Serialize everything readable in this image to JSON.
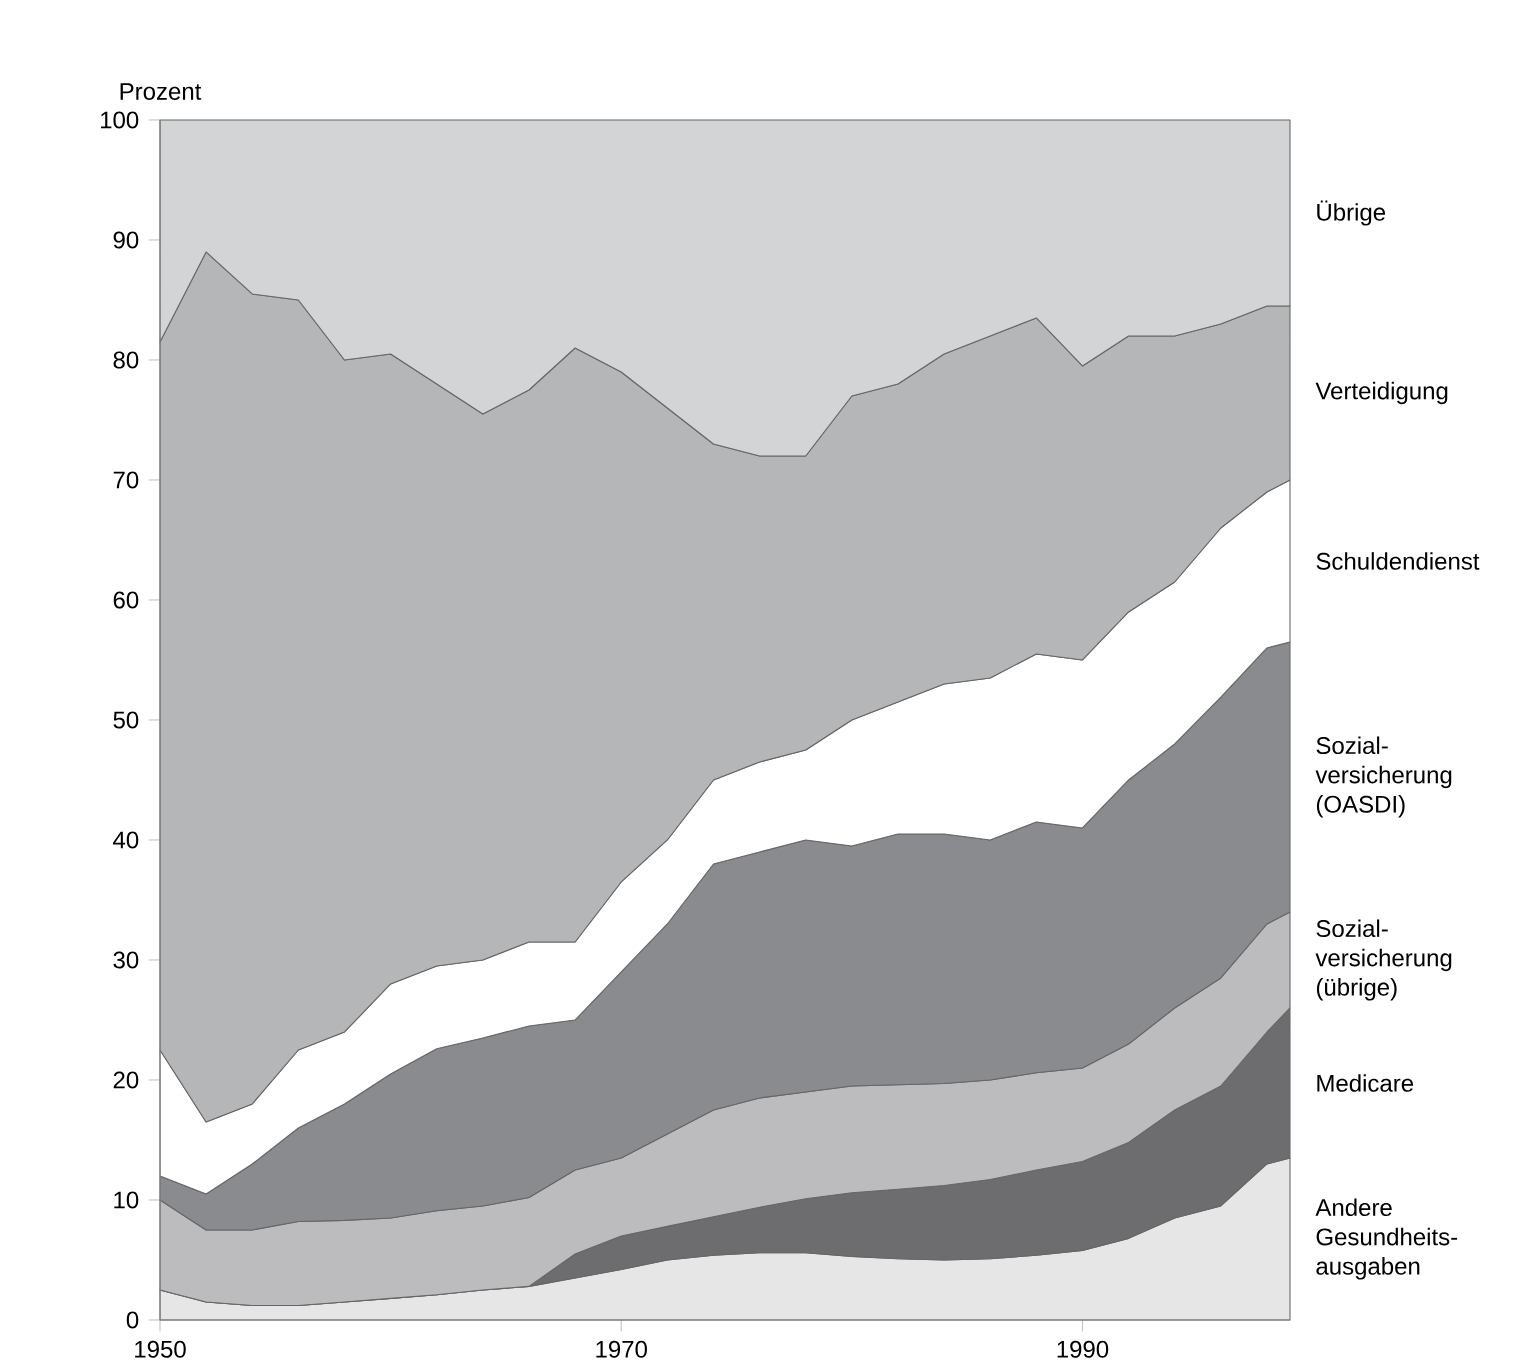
{
  "chart_data": {
    "type": "area",
    "stacked": true,
    "ylabel": "Prozent",
    "x": [
      1950,
      1952,
      1954,
      1956,
      1958,
      1960,
      1962,
      1964,
      1966,
      1968,
      1970,
      1972,
      1974,
      1976,
      1978,
      1980,
      1982,
      1984,
      1986,
      1988,
      1990,
      1992,
      1994,
      1996,
      1998,
      1999
    ],
    "xlim": [
      1950,
      1999
    ],
    "xticks": [
      1950,
      1970,
      1990
    ],
    "ylim": [
      0,
      100
    ],
    "yticks": [
      0,
      10,
      20,
      30,
      40,
      50,
      60,
      70,
      80,
      90,
      100
    ],
    "series": [
      {
        "name": "Andere Gesundheits-ausgaben",
        "color": "#e6e6e6",
        "values": [
          2.5,
          1.5,
          1.2,
          1.2,
          1.5,
          1.8,
          2.1,
          2.5,
          2.8,
          3.5,
          4.2,
          5,
          5.4,
          5.6,
          5.6,
          5.3,
          5.1,
          5,
          5.1,
          5.4,
          5.8,
          6.8,
          8.5,
          9.5,
          13,
          13.5
        ]
      },
      {
        "name": "Medicare",
        "color": "#6d6d6f",
        "values": [
          0,
          0,
          0,
          0,
          0,
          0,
          0,
          0,
          0,
          2.0,
          2.8,
          2.8,
          3.2,
          3.8,
          4.5,
          5.3,
          5.8,
          6.2,
          6.6,
          7.1,
          7.4,
          8.0,
          9.0,
          10.0,
          11.0,
          12.5
        ]
      },
      {
        "name": "Sozial-versicherung (übrige)",
        "color": "#bcbcbe",
        "values": [
          7.5,
          6,
          6.3,
          7,
          6.8,
          6.7,
          7.0,
          7,
          7.4,
          7,
          6.5,
          7.7,
          8.9,
          9.1,
          8.9,
          8.9,
          8.7,
          8.5,
          8.3,
          8.1,
          7.8,
          8.2,
          8.5,
          9,
          9,
          8
        ]
      },
      {
        "name": "Sozial-versicherung (OASDI)",
        "color": "#8a8b8f",
        "values": [
          2,
          3,
          5.5,
          7.8,
          9.7,
          12,
          13.5,
          14,
          14.3,
          12.5,
          15.5,
          17.5,
          20.5,
          20.5,
          21,
          20,
          20.9,
          20.8,
          20,
          20.9,
          20,
          22,
          22,
          23.4,
          23,
          22.5
        ]
      },
      {
        "name": "Schuldendienst",
        "color": "#ffffff",
        "values": [
          10.5,
          6,
          5,
          6.5,
          6,
          7.5,
          6.9,
          6.5,
          7,
          6.5,
          7.5,
          7,
          7,
          7.5,
          7.5,
          10.5,
          11,
          12.5,
          13.5,
          14,
          14,
          14,
          13.5,
          14.1,
          13,
          13.5
        ]
      },
      {
        "name": "Verteidigung",
        "color": "#b5b6b8",
        "values": [
          59,
          72.5,
          67.5,
          62.5,
          56,
          52.5,
          48.5,
          45.5,
          46,
          49.5,
          42.5,
          36,
          28,
          25.5,
          24.5,
          27,
          26.5,
          27.5,
          28.5,
          28,
          24.5,
          23,
          20.5,
          17,
          15.5,
          14.5
        ]
      },
      {
        "name": "Übrige",
        "color": "#d3d4d6",
        "values": [
          18.5,
          11,
          14.5,
          15,
          20,
          19.5,
          22,
          24.5,
          22.5,
          19,
          21,
          24,
          27,
          28,
          28,
          23,
          22,
          19.5,
          18,
          16.5,
          20.5,
          18,
          18,
          17,
          15.5,
          15.5
        ]
      }
    ]
  }
}
